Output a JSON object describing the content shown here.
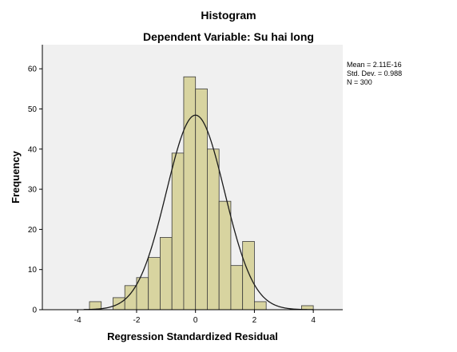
{
  "colors": {
    "plot_background": "#f0f0f0",
    "bar_fill": "#d8d4a0",
    "bar_stroke": "#3a3a3a",
    "curve": "#1a1a1a",
    "axis": "#000000"
  },
  "chart_data": {
    "type": "bar",
    "title": "Histogram",
    "subtitle": "Dependent Variable: Su hai long",
    "xlabel": "Regression Standardized Residual",
    "ylabel": "Frequency",
    "xlim": [
      -5.2,
      5.0
    ],
    "ylim": [
      0,
      66
    ],
    "xticks": [
      -4,
      -2,
      0,
      2,
      4
    ],
    "xtick_labels": [
      "-4",
      "-2",
      "0",
      "2",
      "4"
    ],
    "yticks": [
      0,
      10,
      20,
      30,
      40,
      50,
      60
    ],
    "ytick_labels": [
      "0",
      "10",
      "20",
      "30",
      "40",
      "50",
      "60"
    ],
    "bin_width": 0.4,
    "bins": [
      {
        "start": -3.6,
        "end": -3.2,
        "count": 2
      },
      {
        "start": -3.2,
        "end": -2.8,
        "count": 0
      },
      {
        "start": -2.8,
        "end": -2.4,
        "count": 3
      },
      {
        "start": -2.4,
        "end": -2.0,
        "count": 6
      },
      {
        "start": -2.0,
        "end": -1.6,
        "count": 8
      },
      {
        "start": -1.6,
        "end": -1.2,
        "count": 13
      },
      {
        "start": -1.2,
        "end": -0.8,
        "count": 18
      },
      {
        "start": -0.8,
        "end": -0.4,
        "count": 39
      },
      {
        "start": -0.4,
        "end": 0.0,
        "count": 58
      },
      {
        "start": 0.0,
        "end": 0.4,
        "count": 55
      },
      {
        "start": 0.4,
        "end": 0.8,
        "count": 40
      },
      {
        "start": 0.8,
        "end": 1.2,
        "count": 27
      },
      {
        "start": 1.2,
        "end": 1.6,
        "count": 11
      },
      {
        "start": 1.6,
        "end": 2.0,
        "count": 17
      },
      {
        "start": 2.0,
        "end": 2.4,
        "count": 2
      },
      {
        "start": 2.4,
        "end": 2.8,
        "count": 0
      },
      {
        "start": 2.8,
        "end": 3.2,
        "count": 0
      },
      {
        "start": 3.2,
        "end": 3.6,
        "count": 0
      },
      {
        "start": 3.6,
        "end": 4.0,
        "count": 1
      }
    ],
    "normal_curve": {
      "mean": 0.0,
      "std_dev": 0.988,
      "n": 300
    },
    "stats": {
      "mean_label": "Mean = 2.11E-16",
      "std_label": "Std. Dev. = 0.988",
      "n_label": "N = 300"
    },
    "grid": false
  }
}
